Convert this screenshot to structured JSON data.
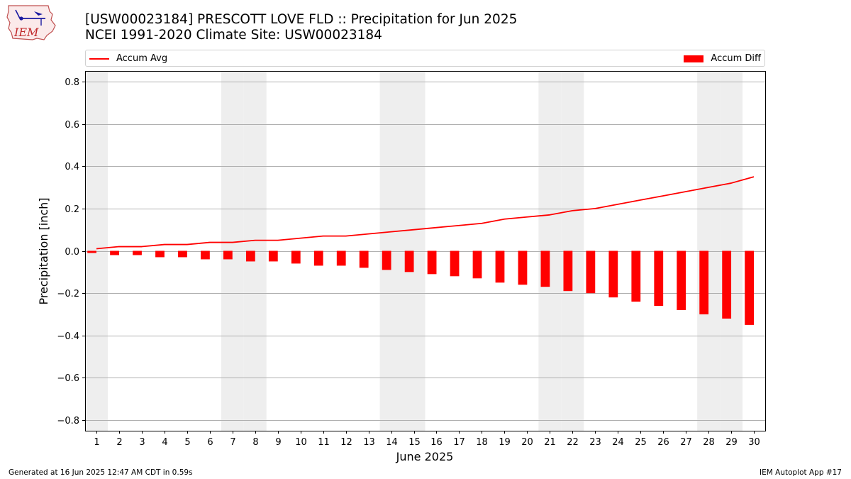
{
  "header": {
    "title": "[USW00023184] PRESCOTT LOVE FLD :: Precipitation for Jun 2025",
    "subtitle": "NCEI 1991-2020 Climate Site: USW00023184",
    "logo_text": "IEM"
  },
  "legend": {
    "line_label": "Accum Avg",
    "bar_label": "Accum Diff"
  },
  "footer": {
    "generated": "Generated at 16 Jun 2025 12:47 AM CDT in 0.59s",
    "app": "IEM Autoplot App #17"
  },
  "colors": {
    "series": "#ff0000",
    "weekend_band": "#eeeeee",
    "grid": "#b0b0b0"
  },
  "chart_data": {
    "type": "bar",
    "xlabel": "June 2025",
    "ylabel": "Precipitation [inch]",
    "ylim": [
      -0.85,
      0.85
    ],
    "yticks": [
      -0.8,
      -0.6,
      -0.4,
      -0.2,
      0.0,
      0.2,
      0.4,
      0.6,
      0.8
    ],
    "ytick_labels": [
      "−0.8",
      "−0.6",
      "−0.4",
      "−0.2",
      "0.0",
      "0.2",
      "0.4",
      "0.6",
      "0.8"
    ],
    "categories": [
      "1",
      "2",
      "3",
      "4",
      "5",
      "6",
      "7",
      "8",
      "9",
      "10",
      "11",
      "12",
      "13",
      "14",
      "15",
      "16",
      "17",
      "18",
      "19",
      "20",
      "21",
      "22",
      "23",
      "24",
      "25",
      "26",
      "27",
      "28",
      "29",
      "30"
    ],
    "weekend_days": [
      1,
      7,
      8,
      14,
      15,
      21,
      22,
      28,
      29
    ],
    "grid": "horizontal",
    "legend_position": "top",
    "series": [
      {
        "name": "Accum Avg",
        "type": "line",
        "values": [
          0.01,
          0.02,
          0.02,
          0.03,
          0.03,
          0.04,
          0.04,
          0.05,
          0.05,
          0.06,
          0.07,
          0.07,
          0.08,
          0.09,
          0.1,
          0.11,
          0.12,
          0.13,
          0.15,
          0.16,
          0.17,
          0.19,
          0.2,
          0.22,
          0.24,
          0.26,
          0.28,
          0.3,
          0.32,
          0.35
        ]
      },
      {
        "name": "Accum Diff",
        "type": "bar",
        "values": [
          -0.01,
          -0.02,
          -0.02,
          -0.03,
          -0.03,
          -0.04,
          -0.04,
          -0.05,
          -0.05,
          -0.06,
          -0.07,
          -0.07,
          -0.08,
          -0.09,
          -0.1,
          -0.11,
          -0.12,
          -0.13,
          -0.15,
          -0.16,
          -0.17,
          -0.19,
          -0.2,
          -0.22,
          -0.24,
          -0.26,
          -0.28,
          -0.3,
          -0.32,
          -0.35
        ]
      }
    ]
  }
}
